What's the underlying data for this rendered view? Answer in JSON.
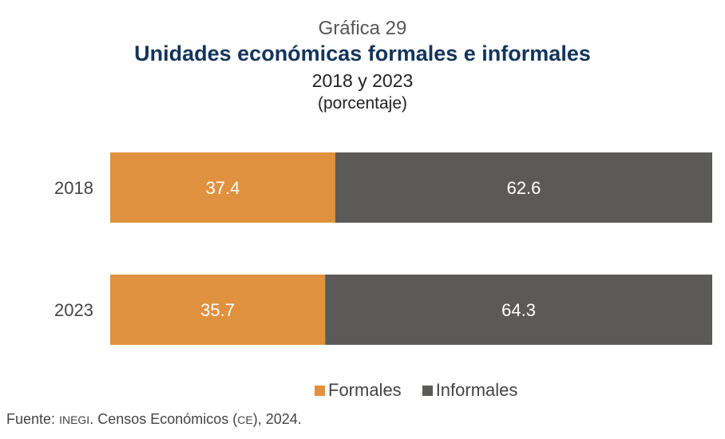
{
  "chart_data": {
    "type": "bar",
    "orientation": "horizontal",
    "stacked": true,
    "supertitle": "Gráfica 29",
    "title": "Unidades económicas formales e informales",
    "subtitle": "2018 y 2023",
    "unit": "(porcentaje)",
    "categories": [
      "2018",
      "2023"
    ],
    "series": [
      {
        "name": "Formales",
        "color": "#e0913f",
        "values": [
          37.4,
          35.7
        ]
      },
      {
        "name": "Informales",
        "color": "#5b5a58",
        "values": [
          62.6,
          64.3
        ]
      }
    ],
    "xlim": [
      0,
      100
    ],
    "grid": false,
    "legend": "bottom"
  },
  "source": {
    "label": "Fuente:",
    "org": "INEGI",
    "text": ". Censos Económicos (",
    "abbr": "CE",
    "end": "), 2024."
  }
}
